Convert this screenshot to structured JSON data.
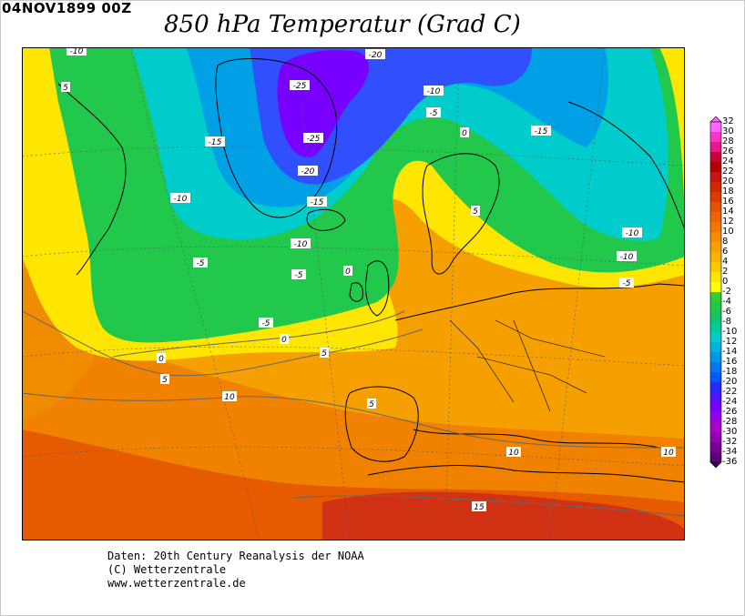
{
  "header": {
    "date": "04NOV1899 00Z",
    "title": "850 hPa Temperatur (Grad C)"
  },
  "credits": {
    "line1": "Daten: 20th Century Reanalysis der NOAA",
    "line2": "(C) Wetterzentrale",
    "line3": "www.wetterzentrale.de"
  },
  "colorbar": {
    "labels": [
      "32",
      "30",
      "28",
      "26",
      "24",
      "22",
      "20",
      "18",
      "16",
      "14",
      "12",
      "10",
      "8",
      "6",
      "4",
      "2",
      "0",
      "-2",
      "-4",
      "-6",
      "-8",
      "-10",
      "-12",
      "-14",
      "-16",
      "-18",
      "-20",
      "-22",
      "-24",
      "-26",
      "-28",
      "-30",
      "-32",
      "-34",
      "-36"
    ],
    "colors": [
      "#ff66ff",
      "#ff33cc",
      "#e6198c",
      "#cc0033",
      "#b30000",
      "#c81414",
      "#d22800",
      "#dc3c00",
      "#e65000",
      "#ee6400",
      "#f07800",
      "#f58c00",
      "#f8a000",
      "#fab400",
      "#fcc800",
      "#ffe600",
      "#ffff00",
      "#33cc33",
      "#22c84c",
      "#11c466",
      "#00cc99",
      "#00cccc",
      "#00b4dc",
      "#0096e6",
      "#0078f0",
      "#005aff",
      "#2828ff",
      "#5014ff",
      "#7800ff",
      "#9600e6",
      "#aa00cc",
      "#9600b4",
      "#780096",
      "#5a0078",
      "#3c005a"
    ]
  },
  "contour_labels": [
    "-10",
    "5",
    "-20",
    "-25",
    "-10",
    "-5",
    "-25",
    "-15",
    "-15",
    "0",
    "-20",
    "-10",
    "-15",
    "5",
    "-10",
    "-10",
    "-5",
    "-5",
    "0",
    "-10",
    "-5",
    "-5",
    "0",
    "5",
    "0",
    "5",
    "10",
    "5",
    "10",
    "10",
    "15"
  ]
}
